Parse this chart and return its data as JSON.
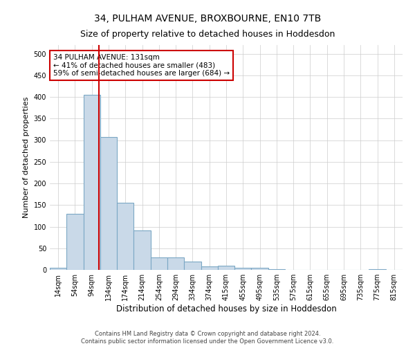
{
  "title": "34, PULHAM AVENUE, BROXBOURNE, EN10 7TB",
  "subtitle": "Size of property relative to detached houses in Hoddesdon",
  "xlabel": "Distribution of detached houses by size in Hoddesdon",
  "ylabel": "Number of detached properties",
  "bar_values": [
    5,
    130,
    405,
    308,
    155,
    92,
    29,
    29,
    19,
    8,
    10,
    5,
    5,
    1,
    0,
    0,
    0,
    0,
    0,
    1,
    0
  ],
  "bar_labels": [
    "14sqm",
    "54sqm",
    "94sqm",
    "134sqm",
    "174sqm",
    "214sqm",
    "254sqm",
    "294sqm",
    "334sqm",
    "374sqm",
    "415sqm",
    "455sqm",
    "495sqm",
    "535sqm",
    "575sqm",
    "615sqm",
    "655sqm",
    "695sqm",
    "735sqm",
    "775sqm",
    "815sqm"
  ],
  "bar_color": "#c9d9e8",
  "bar_edge_color": "#7ba7c4",
  "bar_edge_width": 0.8,
  "property_line_color": "#cc0000",
  "property_line_x": 2.5,
  "annotation_line1": "34 PULHAM AVENUE: 131sqm",
  "annotation_line2": "← 41% of detached houses are smaller (483)",
  "annotation_line3": "59% of semi-detached houses are larger (684) →",
  "annotation_box_color": "#ffffff",
  "annotation_box_edge_color": "#cc0000",
  "ylim": [
    0,
    520
  ],
  "yticks": [
    0,
    50,
    100,
    150,
    200,
    250,
    300,
    350,
    400,
    450,
    500
  ],
  "grid_color": "#cccccc",
  "background_color": "#ffffff",
  "footer_line1": "Contains HM Land Registry data © Crown copyright and database right 2024.",
  "footer_line2": "Contains public sector information licensed under the Open Government Licence v3.0.",
  "title_fontsize": 10,
  "subtitle_fontsize": 9,
  "xlabel_fontsize": 8.5,
  "ylabel_fontsize": 8,
  "tick_fontsize": 7,
  "annotation_fontsize": 7.5,
  "footer_fontsize": 6
}
